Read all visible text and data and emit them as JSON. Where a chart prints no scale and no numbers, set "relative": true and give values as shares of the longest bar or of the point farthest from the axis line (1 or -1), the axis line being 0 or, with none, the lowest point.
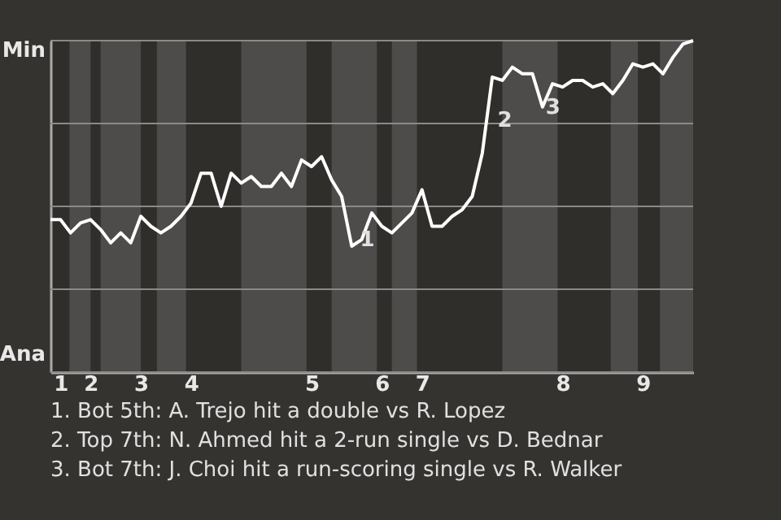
{
  "chart_data": {
    "type": "line",
    "relative": true,
    "categories": [
      null,
      "1",
      null,
      null,
      "2",
      null,
      null,
      null,
      null,
      "3",
      null,
      null,
      null,
      null,
      "4",
      null,
      null,
      null,
      null,
      null,
      null,
      null,
      null,
      null,
      null,
      null,
      "5",
      null,
      null,
      null,
      null,
      null,
      null,
      "6",
      null,
      null,
      null,
      "7",
      null,
      null,
      null,
      null,
      null,
      null,
      null,
      null,
      null,
      null,
      null,
      null,
      null,
      "8",
      null,
      null,
      null,
      null,
      null,
      null,
      null,
      "9",
      null,
      null,
      null,
      null,
      null
    ],
    "series": [
      {
        "color": "#ffffff",
        "values": [
          0.46,
          0.46,
          0.42,
          0.45,
          0.46,
          0.43,
          0.39,
          0.42,
          0.39,
          0.47,
          0.44,
          0.42,
          0.44,
          0.47,
          0.51,
          0.6,
          0.6,
          0.5,
          0.6,
          0.57,
          0.59,
          0.56,
          0.56,
          0.6,
          0.56,
          0.64,
          0.62,
          0.65,
          0.58,
          0.53,
          0.38,
          0.4,
          0.48,
          0.44,
          0.42,
          0.45,
          0.48,
          0.55,
          0.44,
          0.44,
          0.47,
          0.49,
          0.53,
          0.66,
          0.89,
          0.88,
          0.92,
          0.9,
          0.9,
          0.8,
          0.87,
          0.86,
          0.88,
          0.88,
          0.86,
          0.87,
          0.84,
          0.88,
          0.93,
          0.92,
          0.93,
          0.9,
          0.95,
          0.99,
          1.0
        ]
      }
    ],
    "grid": "y",
    "annotations": [
      "Min",
      "Ana",
      "1",
      "2",
      "3",
      "1. Bot 5th: A. Trejo hit a double vs R. Lopez",
      "2. Top 7th: N. Ahmed hit a 2-run single vs D. Bednar",
      "3. Bot 7th: J. Choi hit a run-scoring single vs R. Walker"
    ]
  }
}
